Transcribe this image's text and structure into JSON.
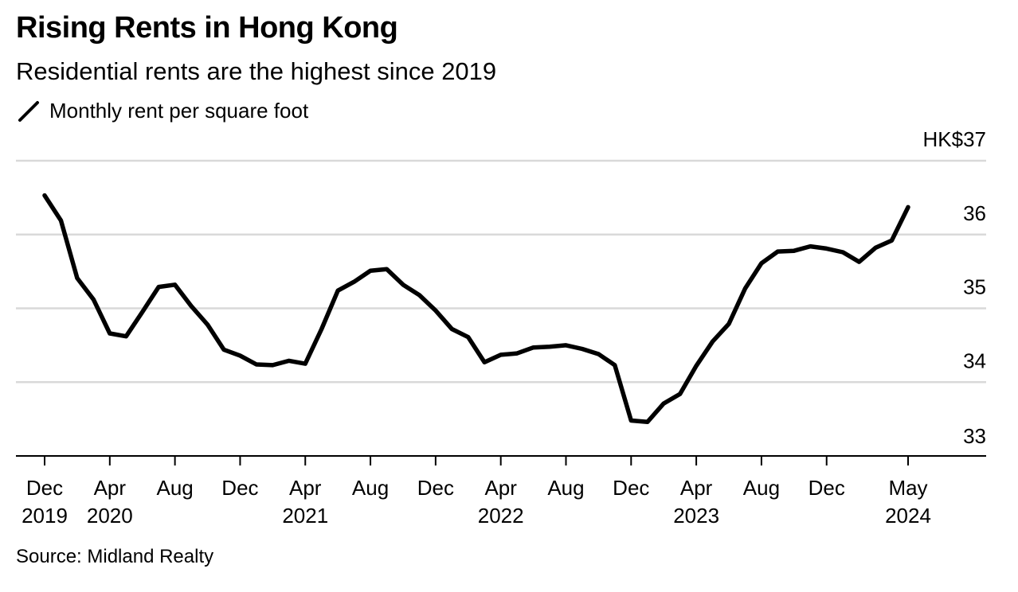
{
  "header": {
    "title": "Rising Rents in Hong Kong",
    "subtitle": "Residential rents are the highest since 2019"
  },
  "legend": {
    "label": "Monthly rent per square foot"
  },
  "footer": {
    "source": "Source: Midland Realty"
  },
  "colors": {
    "line": "#000000",
    "grid": "#d9d9d9",
    "axis": "#000000"
  },
  "chart_data": {
    "type": "line",
    "title": "Rising Rents in Hong Kong",
    "subtitle": "Residential rents are the highest since 2019",
    "xlabel": "",
    "ylabel": "",
    "y_unit_label": "HK$37",
    "ylim": [
      33,
      37
    ],
    "yticks": [
      {
        "value": 37,
        "label": "HK$37"
      },
      {
        "value": 36,
        "label": "36"
      },
      {
        "value": 35,
        "label": "35"
      },
      {
        "value": 34,
        "label": "34"
      },
      {
        "value": 33,
        "label": "33"
      }
    ],
    "xticks": [
      {
        "date": "2019-12",
        "line1": "Dec",
        "line2": "2019"
      },
      {
        "date": "2020-04",
        "line1": "Apr",
        "line2": "2020"
      },
      {
        "date": "2020-08",
        "line1": "Aug",
        "line2": ""
      },
      {
        "date": "2020-12",
        "line1": "Dec",
        "line2": ""
      },
      {
        "date": "2021-04",
        "line1": "Apr",
        "line2": "2021"
      },
      {
        "date": "2021-08",
        "line1": "Aug",
        "line2": ""
      },
      {
        "date": "2021-12",
        "line1": "Dec",
        "line2": ""
      },
      {
        "date": "2022-04",
        "line1": "Apr",
        "line2": "2022"
      },
      {
        "date": "2022-08",
        "line1": "Aug",
        "line2": ""
      },
      {
        "date": "2022-12",
        "line1": "Dec",
        "line2": ""
      },
      {
        "date": "2023-04",
        "line1": "Apr",
        "line2": "2023"
      },
      {
        "date": "2023-08",
        "line1": "Aug",
        "line2": ""
      },
      {
        "date": "2023-12",
        "line1": "Dec",
        "line2": ""
      },
      {
        "date": "2024-05",
        "line1": "May",
        "line2": "2024"
      }
    ],
    "grid": true,
    "legend_position": "top-left",
    "series": [
      {
        "name": "Monthly rent per square foot",
        "x": [
          "2019-12",
          "2020-01",
          "2020-02",
          "2020-03",
          "2020-04",
          "2020-05",
          "2020-06",
          "2020-07",
          "2020-08",
          "2020-09",
          "2020-10",
          "2020-11",
          "2020-12",
          "2021-01",
          "2021-02",
          "2021-03",
          "2021-04",
          "2021-05",
          "2021-06",
          "2021-07",
          "2021-08",
          "2021-09",
          "2021-10",
          "2021-11",
          "2021-12",
          "2022-01",
          "2022-02",
          "2022-03",
          "2022-04",
          "2022-05",
          "2022-06",
          "2022-07",
          "2022-08",
          "2022-09",
          "2022-10",
          "2022-11",
          "2022-12",
          "2023-01",
          "2023-02",
          "2023-03",
          "2023-04",
          "2023-05",
          "2023-06",
          "2023-07",
          "2023-08",
          "2023-09",
          "2023-10",
          "2023-11",
          "2023-12",
          "2024-01",
          "2024-02",
          "2024-03",
          "2024-04",
          "2024-05"
        ],
        "values": [
          36.53,
          36.19,
          35.41,
          35.12,
          34.66,
          34.62,
          34.95,
          35.29,
          35.32,
          35.03,
          34.78,
          34.44,
          34.36,
          34.24,
          34.23,
          34.29,
          34.25,
          34.72,
          35.24,
          35.36,
          35.51,
          35.53,
          35.32,
          35.18,
          34.97,
          34.72,
          34.61,
          34.27,
          34.37,
          34.39,
          34.47,
          34.48,
          34.5,
          34.45,
          34.38,
          34.23,
          33.48,
          33.46,
          33.71,
          33.84,
          34.22,
          34.55,
          34.79,
          35.27,
          35.61,
          35.77,
          35.78,
          35.84,
          35.81,
          35.76,
          35.63,
          35.82,
          35.92,
          36.37
        ]
      }
    ]
  }
}
